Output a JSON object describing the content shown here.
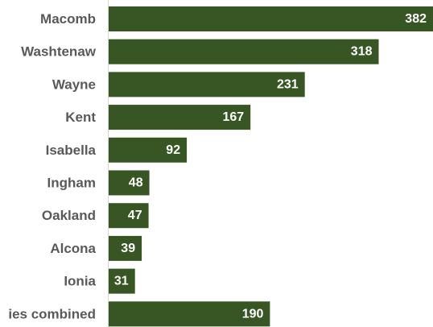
{
  "chart_data": {
    "type": "bar",
    "orientation": "horizontal",
    "categories": [
      "Macomb",
      "Washtenaw",
      "Wayne",
      "Kent",
      "Isabella",
      "Ingham",
      "Oakland",
      "Alcona",
      "Ionia",
      "ies combined"
    ],
    "values": [
      382,
      318,
      231,
      167,
      92,
      48,
      47,
      39,
      31,
      190
    ],
    "data_labels": [
      "382",
      "318",
      "231",
      "167",
      "92",
      "48",
      "47",
      "39",
      "31",
      "190"
    ],
    "title": "",
    "xlabel": "",
    "ylabel": "",
    "xlim": [
      0,
      382
    ],
    "grid": false,
    "legend": "none",
    "bar_color": "#375623",
    "category_label_color": "#595959",
    "value_label_color": "#ffffff"
  }
}
